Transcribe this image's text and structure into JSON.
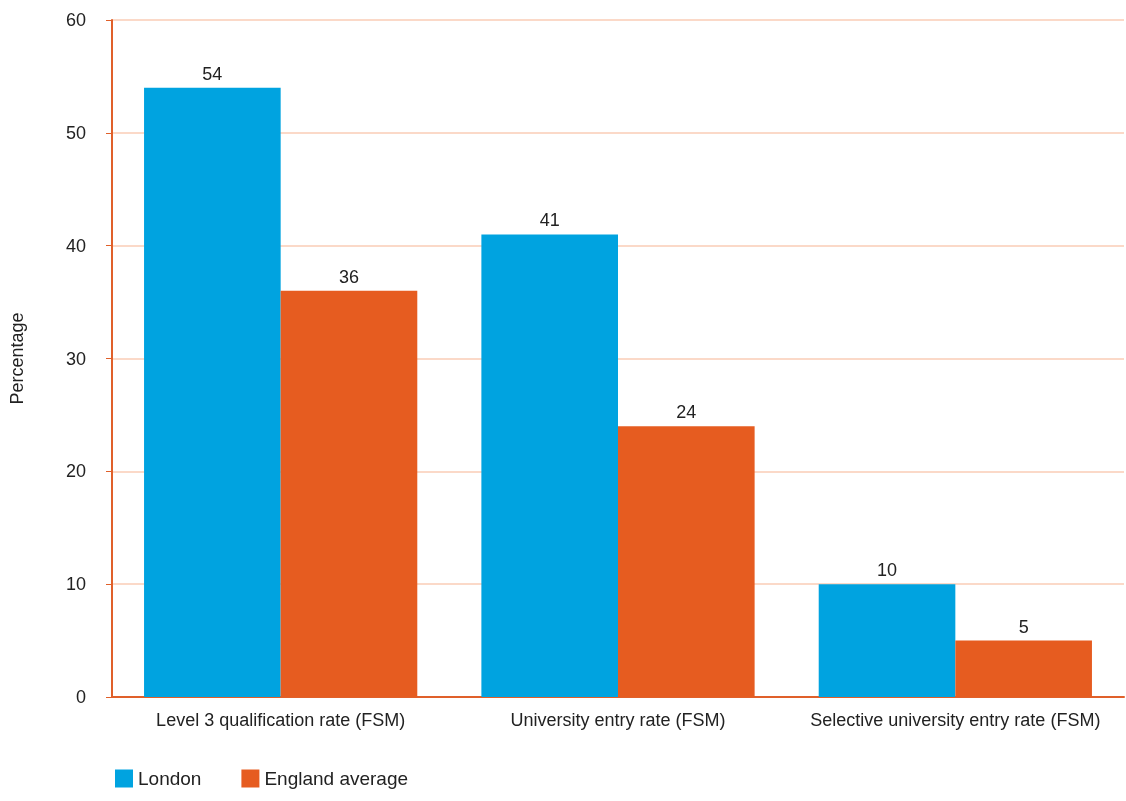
{
  "chart_data": {
    "type": "bar",
    "ylabel": "Percentage",
    "categories": [
      "Level 3 qualification rate (FSM)",
      "University entry rate (FSM)",
      "Selective university entry rate (FSM)"
    ],
    "series": [
      {
        "name": "London",
        "color": "#00a3e0",
        "values": [
          54,
          41,
          10
        ]
      },
      {
        "name": "England average",
        "color": "#e65c20",
        "values": [
          36,
          24,
          5
        ]
      }
    ],
    "ylim": [
      0,
      60
    ],
    "yticks": [
      0,
      10,
      20,
      30,
      40,
      50,
      60
    ],
    "grid": "y",
    "legend": "bottom left",
    "data_labels": true
  }
}
